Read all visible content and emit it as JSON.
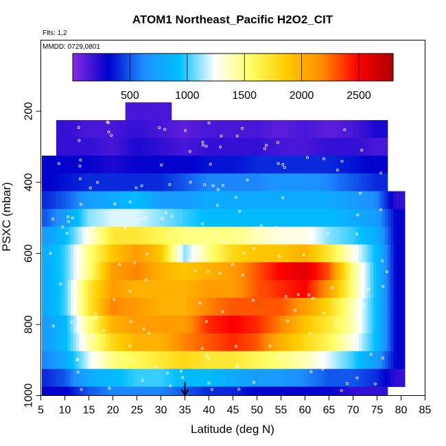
{
  "chart_data": {
    "type": "heatmap",
    "title": "ATOM1 Northeast_Pacific H2O2_CIT",
    "annotations": [
      "Flts: 1,2",
      "MMDD: 0729,0801"
    ],
    "xlabel": "Latitude (deg N)",
    "ylabel": "PSXC (mbar)",
    "xlim": [
      5,
      85
    ],
    "ylim": [
      1000,
      0
    ],
    "x_ticks": [
      "5",
      "10",
      "15",
      "20",
      "25",
      "30",
      "35",
      "40",
      "45",
      "50",
      "55",
      "60",
      "65",
      "70",
      "75",
      "80",
      "85"
    ],
    "y_ticks": [
      "200",
      "400",
      "600",
      "800",
      "1000"
    ],
    "colorbar": {
      "range": [
        0,
        2800
      ],
      "ticks": [
        "500",
        "1000",
        "1500",
        "2000",
        "2500"
      ],
      "colors": [
        "#8a2be2",
        "#0000cc",
        "#1e90ff",
        "#00bfff",
        "#ffffff",
        "#ffff66",
        "#ffcc00",
        "#ff8c00",
        "#ff0000",
        "#aa0000"
      ]
    },
    "marker": {
      "latitude": 35,
      "label": "arrow"
    },
    "grid": false,
    "pressure_bins": [
      200,
      250,
      300,
      350,
      400,
      450,
      500,
      550,
      600,
      650,
      700,
      750,
      800,
      850,
      900,
      950,
      1000
    ],
    "profile_latitudes": [
      6,
      10,
      15,
      20,
      25,
      30,
      35,
      40,
      45,
      50,
      55,
      60,
      65,
      70,
      75,
      79
    ],
    "values_by_pressure": [
      {
        "p": 200,
        "values": [
          null,
          null,
          null,
          null,
          150,
          150,
          null,
          null,
          null,
          null,
          null,
          null,
          null,
          null,
          null,
          null
        ]
      },
      {
        "p": 250,
        "values": [
          null,
          200,
          150,
          150,
          200,
          150,
          100,
          150,
          150,
          150,
          100,
          150,
          100,
          150,
          250,
          null
        ]
      },
      {
        "p": 300,
        "values": [
          null,
          200,
          200,
          150,
          250,
          200,
          150,
          200,
          200,
          200,
          150,
          150,
          200,
          200,
          150,
          null
        ]
      },
      {
        "p": 350,
        "values": [
          300,
          300,
          300,
          250,
          300,
          300,
          300,
          350,
          350,
          400,
          400,
          400,
          400,
          350,
          300,
          null
        ]
      },
      {
        "p": 400,
        "values": [
          300,
          350,
          400,
          400,
          400,
          400,
          500,
          600,
          600,
          600,
          650,
          650,
          600,
          500,
          400,
          null
        ]
      },
      {
        "p": 450,
        "values": [
          400,
          500,
          700,
          800,
          900,
          700,
          700,
          800,
          800,
          800,
          800,
          800,
          800,
          700,
          600,
          200
        ]
      },
      {
        "p": 500,
        "values": [
          500,
          700,
          1100,
          1200,
          1200,
          1100,
          1000,
          900,
          900,
          900,
          900,
          900,
          900,
          800,
          700,
          300
        ]
      },
      {
        "p": 550,
        "values": [
          700,
          900,
          1300,
          1700,
          1700,
          1600,
          1500,
          1500,
          1500,
          1400,
          1300,
          1300,
          1100,
          1000,
          800,
          300
        ]
      },
      {
        "p": 600,
        "values": [
          800,
          1000,
          1500,
          1900,
          2100,
          1900,
          1100,
          1500,
          1800,
          1900,
          1900,
          2000,
          1700,
          1300,
          900,
          300
        ]
      },
      {
        "p": 650,
        "values": [
          800,
          1000,
          1500,
          2100,
          2200,
          2000,
          1900,
          2000,
          2100,
          2300,
          2500,
          2600,
          2300,
          1500,
          900,
          300
        ]
      },
      {
        "p": 700,
        "values": [
          800,
          1000,
          1700,
          2100,
          2000,
          2000,
          2000,
          2100,
          2100,
          2300,
          2400,
          2500,
          2100,
          1500,
          900,
          300
        ]
      },
      {
        "p": 750,
        "values": [
          800,
          1000,
          1700,
          2200,
          2100,
          2000,
          2000,
          2200,
          2300,
          2300,
          2300,
          2100,
          1800,
          1400,
          900,
          300
        ]
      },
      {
        "p": 800,
        "values": [
          700,
          900,
          1500,
          2000,
          2100,
          2100,
          2100,
          2400,
          2500,
          2400,
          2200,
          1900,
          1700,
          1400,
          900,
          300
        ]
      },
      {
        "p": 850,
        "values": [
          700,
          900,
          1400,
          1800,
          2000,
          2000,
          2200,
          2300,
          2400,
          2300,
          2000,
          1800,
          1600,
          1300,
          900,
          300
        ]
      },
      {
        "p": 900,
        "values": [
          600,
          800,
          1200,
          1500,
          1600,
          1700,
          1800,
          1700,
          1700,
          1600,
          1500,
          1400,
          1200,
          1000,
          700,
          300
        ]
      },
      {
        "p": 950,
        "values": [
          400,
          500,
          800,
          900,
          1000,
          1000,
          900,
          900,
          800,
          700,
          700,
          600,
          500,
          500,
          400,
          200
        ]
      },
      {
        "p": 1000,
        "values": [
          300,
          300,
          500,
          600,
          600,
          600,
          500,
          400,
          400,
          300,
          300,
          300,
          300,
          200,
          200,
          null
        ]
      }
    ]
  }
}
